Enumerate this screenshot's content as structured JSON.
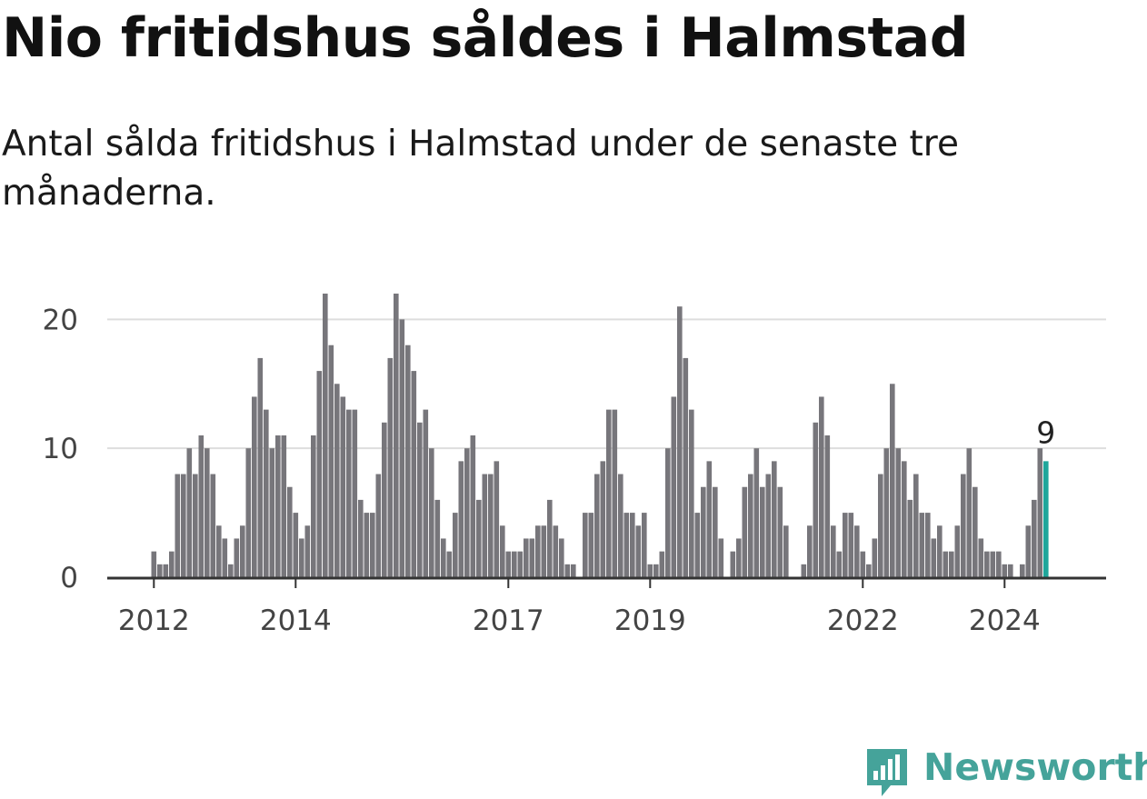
{
  "header": {
    "title": "Nio fritidshus såldes i Halmstad",
    "subtitle": "Antal sålda fritidshus i Halmstad under de senaste tre månaderna."
  },
  "brand": {
    "name": "Newsworthy",
    "icon": "newsworthy-logo-icon",
    "color": "#45a39a"
  },
  "chart_data": {
    "type": "bar",
    "title": "Nio fritidshus såldes i Halmstad",
    "subtitle": "Antal sålda fritidshus i Halmstad under de senaste tre månaderna.",
    "xlabel": "",
    "ylabel": "",
    "ylim": [
      0,
      22
    ],
    "yticks": [
      0,
      10,
      20
    ],
    "xtick_labels": [
      "2012",
      "2014",
      "2017",
      "2019",
      "2022",
      "2024"
    ],
    "grid": true,
    "bar_color": "#77767b",
    "highlight_color": "#1fa69b",
    "series": [
      {
        "values": [
          2,
          1,
          1,
          2,
          8,
          8,
          10,
          8,
          11,
          10,
          8,
          4,
          3,
          1,
          3,
          4,
          10,
          14,
          17,
          13,
          10,
          11,
          11,
          7,
          5,
          3,
          4,
          11,
          16,
          22,
          18,
          15,
          14,
          13,
          13,
          6,
          5,
          5,
          8,
          12,
          17,
          22,
          20,
          18,
          16,
          12,
          13,
          10,
          6,
          3,
          2,
          5,
          9,
          10,
          11,
          6,
          8,
          8,
          9,
          4,
          2,
          2,
          2,
          3,
          3,
          4,
          4,
          6,
          4,
          3,
          1,
          1,
          0,
          5,
          5,
          8,
          9,
          13,
          13,
          8,
          5,
          5,
          4,
          5,
          1,
          1,
          2,
          10,
          14,
          21,
          17,
          13,
          5,
          7,
          9,
          7,
          3,
          0,
          2,
          3,
          7,
          8,
          10,
          7,
          8,
          9,
          7,
          4,
          0,
          0,
          1,
          4,
          12,
          14,
          11,
          4,
          2,
          5,
          5,
          4,
          2,
          1,
          3,
          8,
          10,
          15,
          10,
          9,
          6,
          8,
          5,
          5,
          3,
          4,
          2,
          2,
          4,
          8,
          10,
          7,
          3,
          2,
          2,
          2,
          1,
          1,
          0,
          1,
          4,
          6,
          10,
          9
        ]
      }
    ],
    "highlight": {
      "value": 9,
      "label": "9"
    }
  }
}
